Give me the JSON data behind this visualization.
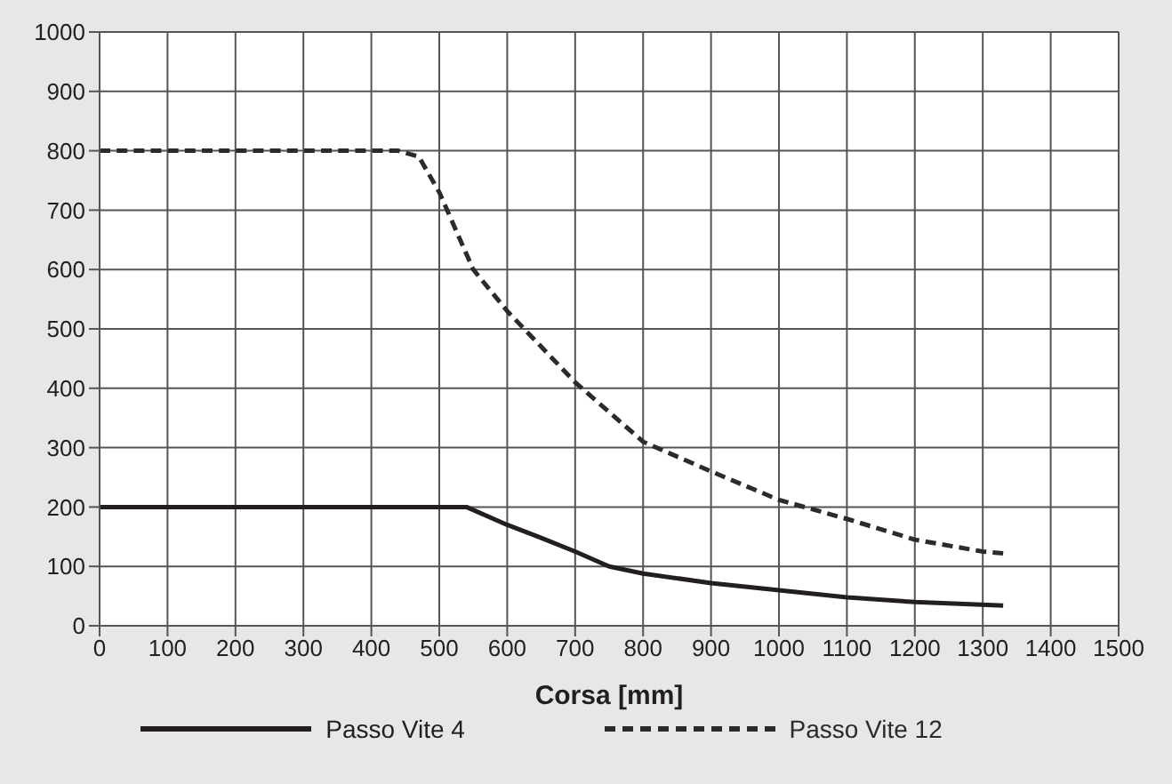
{
  "chart_data": {
    "type": "line",
    "xlabel": "Corsa [mm]",
    "xlim": [
      0,
      1500
    ],
    "xticks": [
      0,
      100,
      200,
      300,
      400,
      500,
      600,
      700,
      800,
      900,
      1000,
      1100,
      1200,
      1300,
      1400,
      1500
    ],
    "ylim": [
      0,
      1000
    ],
    "yticks": [
      0,
      100,
      200,
      300,
      400,
      500,
      600,
      700,
      800,
      900,
      1000
    ],
    "grid": true,
    "legend": "bottom",
    "marker": "none",
    "series": [
      {
        "name": "Passo Vite 4",
        "color": "#231f20",
        "line_style": "solid",
        "x": [
          0,
          540,
          600,
          650,
          700,
          750,
          800,
          900,
          1000,
          1100,
          1200,
          1330
        ],
        "values": [
          200,
          200,
          170,
          148,
          125,
          100,
          88,
          72,
          60,
          48,
          40,
          34
        ]
      },
      {
        "name": "Passo Vite 12",
        "color": "#2d2a2b",
        "line_style": "dashed",
        "x": [
          0,
          440,
          470,
          500,
          550,
          600,
          700,
          800,
          900,
          1000,
          1100,
          1200,
          1300,
          1330
        ],
        "values": [
          800,
          800,
          790,
          730,
          600,
          530,
          410,
          310,
          260,
          212,
          180,
          145,
          125,
          122
        ]
      }
    ]
  }
}
